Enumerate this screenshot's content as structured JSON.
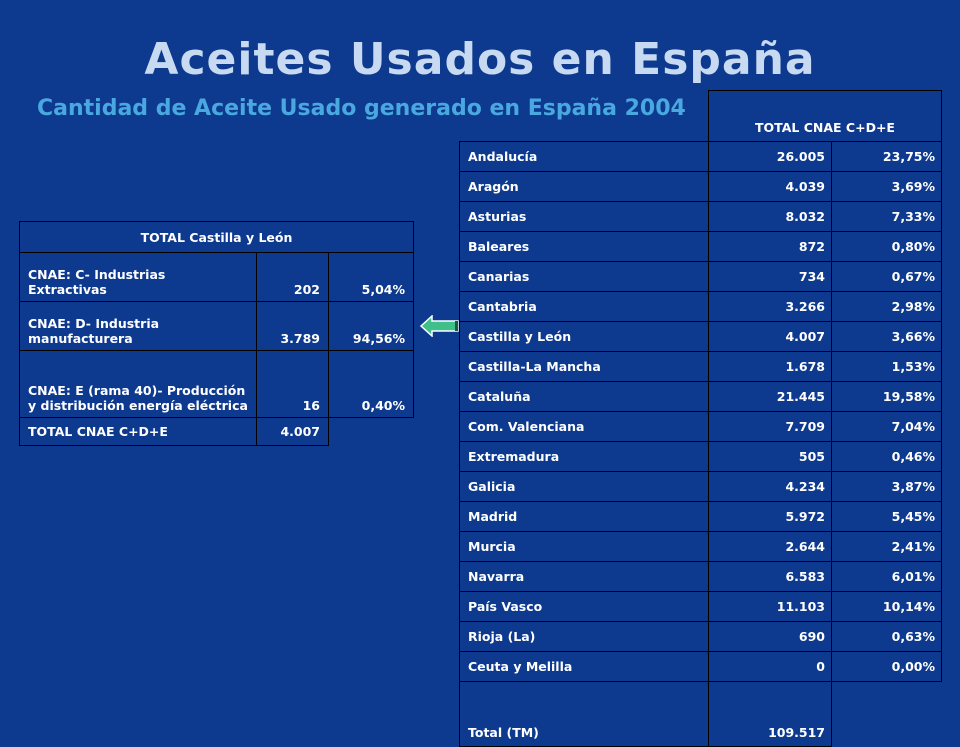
{
  "title": "Aceites Usados en España",
  "subtitle": "Cantidad de Aceite Usado generado en España 2004",
  "left_table": {
    "header": "TOTAL Castilla y León",
    "rows": [
      {
        "label": "CNAE: C- Industrias Extractivas",
        "value": "202",
        "pct": "5,04%"
      },
      {
        "label": "CNAE: D- Industria manufacturera",
        "value": "3.789",
        "pct": "94,56%"
      },
      {
        "label": "CNAE: E (rama 40)- Producción y distribución energía eléctrica",
        "value": "16",
        "pct": "0,40%"
      }
    ],
    "total_label": "TOTAL CNAE C+D+E",
    "total_value": "4.007"
  },
  "right_table": {
    "header": "TOTAL CNAE C+D+E",
    "rows": [
      {
        "region": "Andalucía",
        "value": "26.005",
        "pct": "23,75%"
      },
      {
        "region": "Aragón",
        "value": "4.039",
        "pct": "3,69%"
      },
      {
        "region": "Asturias",
        "value": "8.032",
        "pct": "7,33%"
      },
      {
        "region": "Baleares",
        "value": "872",
        "pct": "0,80%"
      },
      {
        "region": "Canarias",
        "value": "734",
        "pct": "0,67%"
      },
      {
        "region": "Cantabria",
        "value": "3.266",
        "pct": "2,98%"
      },
      {
        "region": "Castilla y León",
        "value": "4.007",
        "pct": "3,66%"
      },
      {
        "region": "Castilla-La Mancha",
        "value": "1.678",
        "pct": "1,53%"
      },
      {
        "region": "Cataluña",
        "value": "21.445",
        "pct": "19,58%"
      },
      {
        "region": "Com. Valenciana",
        "value": "7.709",
        "pct": "7,04%"
      },
      {
        "region": "Extremadura",
        "value": "505",
        "pct": "0,46%"
      },
      {
        "region": "Galicia",
        "value": "4.234",
        "pct": "3,87%"
      },
      {
        "region": "Madrid",
        "value": "5.972",
        "pct": "5,45%"
      },
      {
        "region": "Murcia",
        "value": "2.644",
        "pct": "2,41%"
      },
      {
        "region": "Navarra",
        "value": "6.583",
        "pct": "6,01%"
      },
      {
        "region": "País Vasco",
        "value": "11.103",
        "pct": "10,14%"
      },
      {
        "region": "Rioja (La)",
        "value": "690",
        "pct": "0,63%"
      },
      {
        "region": "Ceuta y Melilla",
        "value": "0",
        "pct": "0,00%"
      }
    ],
    "total_label": "Total (TM)",
    "total_value": "109.517"
  },
  "colors": {
    "background": "#0d3a8f",
    "title": "#c7daf2",
    "subtitle": "#4aa8e0",
    "arrow": "#3fbf8a"
  },
  "icons": {
    "arrow": "left-arrow-icon"
  }
}
